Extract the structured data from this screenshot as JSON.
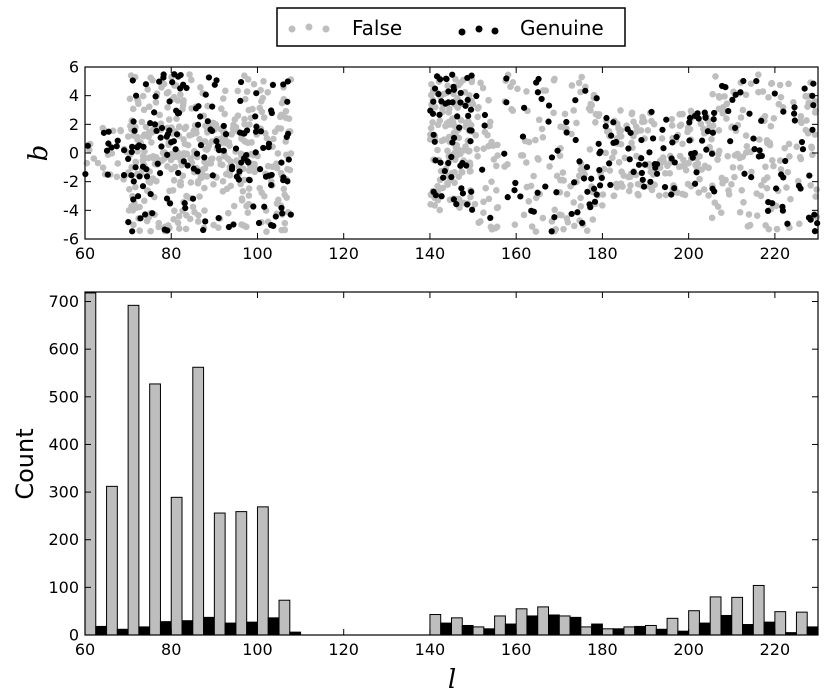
{
  "chart_data": [
    {
      "type": "scatter",
      "title": "",
      "xlabel": "",
      "ylabel": "b",
      "xlim": [
        60,
        230
      ],
      "ylim": [
        -6,
        6
      ],
      "xticks": [
        60,
        80,
        100,
        120,
        140,
        160,
        180,
        200,
        220
      ],
      "yticks": [
        -6,
        -4,
        -2,
        0,
        2,
        4,
        6
      ],
      "grid": false,
      "legend": {
        "placement": "top-center",
        "entries": [
          "False",
          "Genuine"
        ]
      },
      "series": [
        {
          "name": "False",
          "color": "#bebebe",
          "regions": [
            {
              "x": [
                60,
                108
              ],
              "y": [
                -2,
                2
              ]
            },
            {
              "x": [
                70,
                86
              ],
              "y": [
                -5.5,
                5.5
              ]
            },
            {
              "x": [
                86,
                108
              ],
              "y": [
                -5.5,
                5.5
              ]
            },
            {
              "x": [
                140,
                150
              ],
              "y": [
                -4,
                5.5
              ]
            },
            {
              "x": [
                150,
                180
              ],
              "y": [
                -5.5,
                5.5
              ]
            },
            {
              "x": [
                180,
                205
              ],
              "y": [
                -3,
                3
              ]
            },
            {
              "x": [
                205,
                230
              ],
              "y": [
                -5.5,
                5.5
              ]
            }
          ]
        },
        {
          "name": "Genuine",
          "color": "#000000",
          "regions": [
            {
              "x": [
                60,
                108
              ],
              "y": [
                -2,
                2
              ]
            },
            {
              "x": [
                70,
                86
              ],
              "y": [
                -5.5,
                5.5
              ]
            },
            {
              "x": [
                86,
                108
              ],
              "y": [
                -5.5,
                5.5
              ]
            },
            {
              "x": [
                140,
                150
              ],
              "y": [
                -4,
                5.5
              ]
            },
            {
              "x": [
                150,
                180
              ],
              "y": [
                -5.5,
                5.5
              ]
            },
            {
              "x": [
                180,
                205
              ],
              "y": [
                -3,
                3
              ]
            },
            {
              "x": [
                205,
                230
              ],
              "y": [
                -5.5,
                5.5
              ]
            }
          ]
        }
      ]
    },
    {
      "type": "bar",
      "title": "",
      "xlabel": "l",
      "ylabel": "Count",
      "xlim": [
        60,
        230
      ],
      "ylim": [
        0,
        720
      ],
      "xticks": [
        60,
        80,
        100,
        120,
        140,
        160,
        180,
        200,
        220
      ],
      "yticks": [
        0,
        100,
        200,
        300,
        400,
        500,
        600,
        700
      ],
      "grid": false,
      "bin_starts": [
        60,
        65,
        70,
        75,
        80,
        85,
        90,
        95,
        100,
        105,
        110,
        115,
        120,
        125,
        130,
        135,
        140,
        145,
        150,
        155,
        160,
        165,
        170,
        175,
        180,
        185,
        190,
        195,
        200,
        205,
        210,
        215,
        220,
        225
      ],
      "bin_width": 5,
      "series": [
        {
          "name": "False",
          "color": "#bebebe",
          "values": [
            718,
            312,
            692,
            527,
            289,
            562,
            256,
            259,
            269,
            73,
            0,
            0,
            0,
            0,
            0,
            0,
            43,
            36,
            17,
            40,
            55,
            59,
            40,
            17,
            13,
            17,
            20,
            35,
            51,
            80,
            79,
            104,
            49,
            48
          ]
        },
        {
          "name": "Genuine",
          "color": "#000000",
          "values": [
            18,
            12,
            17,
            28,
            30,
            37,
            25,
            27,
            36,
            6,
            0,
            0,
            0,
            0,
            0,
            0,
            25,
            20,
            13,
            23,
            40,
            42,
            37,
            23,
            13,
            18,
            12,
            8,
            25,
            41,
            22,
            27,
            5,
            17
          ]
        }
      ]
    }
  ]
}
